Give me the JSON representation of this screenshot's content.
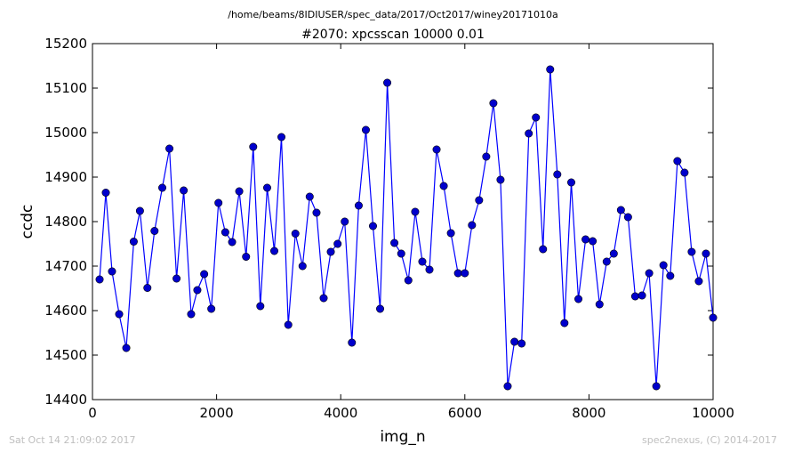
{
  "header": {
    "path": "/home/beams/8IDIUSER/spec_data/2017/Oct2017/winey20171010a",
    "title": "#2070: xpcsscan 10000 0.01"
  },
  "footer": {
    "left": "Sat Oct 14 21:09:02 2017",
    "right": "spec2nexus, (C) 2014-2017"
  },
  "chart_data": {
    "type": "line",
    "xlabel": "img_n",
    "ylabel": "ccdc",
    "xlim": [
      0,
      10000
    ],
    "ylim": [
      14400,
      15200
    ],
    "xticks": [
      "0",
      "2000",
      "4000",
      "6000",
      "8000",
      "10000"
    ],
    "yticks": [
      "14400",
      "14500",
      "14600",
      "14700",
      "14800",
      "14900",
      "15000",
      "15100",
      "15200"
    ],
    "grid": false,
    "line_color": "#0000ff",
    "marker_color": "#0000cc",
    "x": [
      115,
      215,
      315,
      430,
      545,
      665,
      765,
      885,
      1000,
      1125,
      1240,
      1355,
      1470,
      1590,
      1690,
      1800,
      1915,
      2030,
      2140,
      2250,
      2365,
      2475,
      2590,
      2705,
      2815,
      2930,
      3045,
      3155,
      3270,
      3385,
      3500,
      3610,
      3725,
      3840,
      3950,
      4065,
      4180,
      4290,
      4405,
      4520,
      4635,
      4750,
      4865,
      4975,
      5090,
      5200,
      5315,
      5430,
      5545,
      5660,
      5775,
      5890,
      6000,
      6115,
      6230,
      6345,
      6460,
      6575,
      6690,
      6800,
      6915,
      7030,
      7145,
      7260,
      7375,
      7490,
      7605,
      7715,
      7830,
      7945,
      8060,
      8170,
      8285,
      8400,
      8515,
      8630,
      8745,
      8855,
      8970,
      9085,
      9200,
      9310,
      9425,
      9540,
      9655,
      9770,
      9885,
      10000
    ],
    "y": [
      14670,
      14865,
      14688,
      14592,
      14516,
      14755,
      14824,
      14651,
      14779,
      14876,
      14964,
      14672,
      14870,
      14592,
      14646,
      14682,
      14604,
      14842,
      14776,
      14754,
      14868,
      14721,
      14968,
      14610,
      14876,
      14734,
      14990,
      14568,
      14773,
      14700,
      14856,
      14820,
      14628,
      14732,
      14750,
      14800,
      14528,
      14836,
      15006,
      14790,
      14604,
      15112,
      14752,
      14728,
      14668,
      14822,
      14710,
      14692,
      14962,
      14880,
      14774,
      14684,
      14684,
      14792,
      14848,
      14946,
      15066,
      14894,
      14430,
      14530,
      14526,
      14998,
      15034,
      14738,
      15142,
      14906,
      14572,
      14888,
      14626,
      14760,
      14756,
      14614,
      14710,
      14728,
      14826,
      14810,
      14632,
      14634,
      14684,
      14430,
      14702,
      14678,
      14936,
      14910,
      14732,
      14666,
      14728,
      14584
    ]
  }
}
